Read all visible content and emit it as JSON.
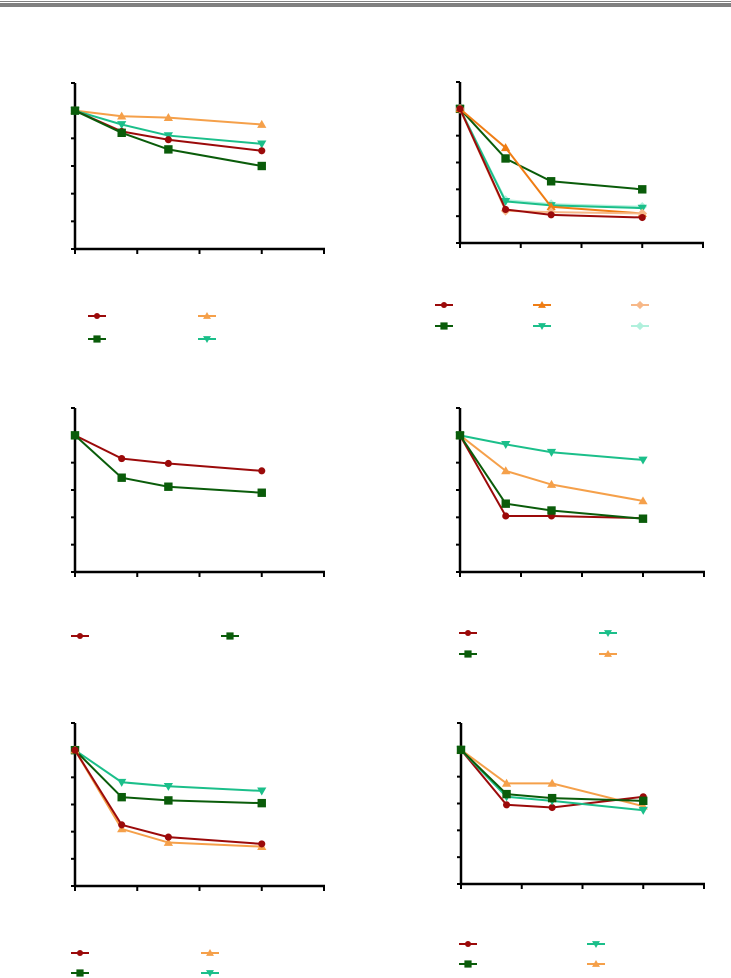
{
  "header": {
    "rule_color": "#808080"
  },
  "colors": {
    "red": "#9b0a0a",
    "green": "#0a5c0a",
    "orange": "#f5a04a",
    "dark_orange": "#ef7d14",
    "light_orange": "#f7b888",
    "teal": "#1bbf8a",
    "light_teal": "#b0f0dc"
  },
  "chart_data": [
    {
      "type": "line",
      "title": "",
      "xlabel": "",
      "ylabel": "",
      "xlim": [
        0,
        4
      ],
      "ylim": [
        0,
        6
      ],
      "grid": false,
      "x": [
        0,
        0.75,
        1.5,
        3
      ],
      "series": [
        {
          "name": "",
          "color": "orange",
          "marker": "triangle-up",
          "values": [
            5,
            4.8,
            4.75,
            4.5
          ]
        },
        {
          "name": "",
          "color": "teal",
          "marker": "triangle-down",
          "values": [
            5,
            4.5,
            4.1,
            3.8
          ]
        },
        {
          "name": "",
          "color": "red",
          "marker": "circle",
          "values": [
            5,
            4.25,
            3.95,
            3.55
          ]
        },
        {
          "name": "",
          "color": "green",
          "marker": "square",
          "values": [
            5,
            4.2,
            3.6,
            3.0
          ]
        }
      ],
      "legend": {
        "placement": "bottom",
        "columns": 2,
        "order": [
          "red",
          "orange",
          "green",
          "teal"
        ]
      }
    },
    {
      "type": "line",
      "title": "",
      "xlabel": "",
      "ylabel": "",
      "xlim": [
        0,
        4
      ],
      "ylim": [
        0,
        6
      ],
      "grid": false,
      "x": [
        0,
        0.75,
        1.5,
        3
      ],
      "series": [
        {
          "name": "",
          "color": "light_teal",
          "marker": "diamond",
          "values": [
            5,
            1.6,
            1.45,
            1.35
          ]
        },
        {
          "name": "",
          "color": "teal",
          "marker": "triangle-down",
          "values": [
            5,
            1.55,
            1.4,
            1.3
          ]
        },
        {
          "name": "",
          "color": "green",
          "marker": "square",
          "values": [
            5,
            3.15,
            2.3,
            2.0
          ]
        },
        {
          "name": "",
          "color": "dark_orange",
          "marker": "triangle-up",
          "values": [
            5,
            3.55,
            1.35,
            1.1
          ]
        },
        {
          "name": "",
          "color": "light_orange",
          "marker": "diamond",
          "values": [
            5,
            1.2,
            1.15,
            1.1
          ]
        },
        {
          "name": "",
          "color": "red",
          "marker": "circle",
          "values": [
            5,
            1.25,
            1.05,
            0.95
          ]
        }
      ],
      "legend": {
        "placement": "bottom",
        "columns": 3,
        "order": [
          "red",
          "dark_orange",
          "light_orange",
          "green",
          "teal",
          "light_teal"
        ]
      }
    },
    {
      "type": "line",
      "title": "",
      "xlabel": "",
      "ylabel": "",
      "xlim": [
        0,
        4
      ],
      "ylim": [
        0,
        6
      ],
      "grid": false,
      "x": [
        0,
        0.75,
        1.5,
        3
      ],
      "series": [
        {
          "name": "",
          "color": "red",
          "marker": "circle",
          "values": [
            5,
            4.15,
            3.97,
            3.7
          ]
        },
        {
          "name": "",
          "color": "green",
          "marker": "square",
          "values": [
            5,
            3.45,
            3.12,
            2.9
          ]
        }
      ],
      "legend": {
        "placement": "bottom",
        "columns": 2,
        "order": [
          "red",
          "green"
        ]
      }
    },
    {
      "type": "line",
      "title": "",
      "xlabel": "",
      "ylabel": "",
      "xlim": [
        0,
        4
      ],
      "ylim": [
        0,
        6
      ],
      "grid": false,
      "x": [
        0,
        0.75,
        1.5,
        3
      ],
      "series": [
        {
          "name": "",
          "color": "teal",
          "marker": "triangle-down",
          "values": [
            5,
            4.67,
            4.38,
            4.1
          ]
        },
        {
          "name": "",
          "color": "orange",
          "marker": "triangle-up",
          "values": [
            5,
            3.7,
            3.2,
            2.6
          ]
        },
        {
          "name": "",
          "color": "red",
          "marker": "circle",
          "values": [
            5,
            2.05,
            2.05,
            1.97
          ]
        },
        {
          "name": "",
          "color": "green",
          "marker": "square",
          "values": [
            5,
            2.5,
            2.25,
            1.95
          ]
        }
      ],
      "legend": {
        "placement": "bottom",
        "columns": 2,
        "order": [
          "red",
          "teal",
          "green",
          "orange"
        ]
      }
    },
    {
      "type": "line",
      "title": "",
      "xlabel": "",
      "ylabel": "",
      "xlim": [
        0,
        4
      ],
      "ylim": [
        0,
        6
      ],
      "grid": false,
      "x": [
        0,
        0.75,
        1.5,
        3
      ],
      "series": [
        {
          "name": "",
          "color": "teal",
          "marker": "triangle-down",
          "values": [
            5,
            3.82,
            3.67,
            3.5
          ]
        },
        {
          "name": "",
          "color": "green",
          "marker": "square",
          "values": [
            5,
            3.27,
            3.15,
            3.05
          ]
        },
        {
          "name": "",
          "color": "orange",
          "marker": "triangle-up",
          "values": [
            5,
            2.1,
            1.6,
            1.45
          ]
        },
        {
          "name": "",
          "color": "red",
          "marker": "circle",
          "values": [
            5,
            2.25,
            1.8,
            1.55
          ]
        }
      ],
      "legend": {
        "placement": "bottom",
        "columns": 2,
        "order": [
          "red",
          "orange",
          "green",
          "teal"
        ]
      }
    },
    {
      "type": "line",
      "title": "",
      "xlabel": "",
      "ylabel": "",
      "xlim": [
        0,
        4
      ],
      "ylim": [
        0,
        6
      ],
      "grid": false,
      "x": [
        0,
        0.75,
        1.5,
        3
      ],
      "series": [
        {
          "name": "",
          "color": "orange",
          "marker": "triangle-up",
          "values": [
            5,
            3.75,
            3.75,
            2.9
          ]
        },
        {
          "name": "",
          "color": "red",
          "marker": "circle",
          "values": [
            5,
            2.95,
            2.85,
            3.25
          ]
        },
        {
          "name": "",
          "color": "teal",
          "marker": "triangle-down",
          "values": [
            5,
            3.25,
            3.1,
            2.75
          ]
        },
        {
          "name": "",
          "color": "green",
          "marker": "square",
          "values": [
            5,
            3.35,
            3.2,
            3.1
          ]
        }
      ],
      "legend": {
        "placement": "bottom",
        "columns": 2,
        "order": [
          "red",
          "teal",
          "green",
          "orange"
        ]
      }
    }
  ]
}
